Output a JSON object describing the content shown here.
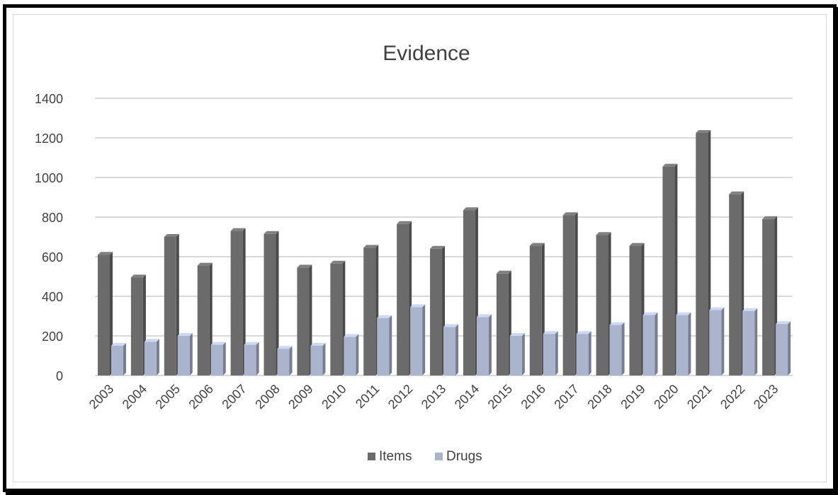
{
  "chart_data": {
    "type": "bar",
    "title": "Evidence",
    "categories": [
      "2003",
      "2004",
      "2005",
      "2006",
      "2007",
      "2008",
      "2009",
      "2010",
      "2011",
      "2012",
      "2013",
      "2014",
      "2015",
      "2016",
      "2017",
      "2018",
      "2019",
      "2020",
      "2021",
      "2022",
      "2023"
    ],
    "series": [
      {
        "name": "Items",
        "color": "#6b6b6b",
        "values": [
          610,
          495,
          700,
          555,
          730,
          715,
          545,
          565,
          645,
          765,
          640,
          835,
          515,
          655,
          810,
          710,
          655,
          1055,
          1225,
          915,
          790
        ]
      },
      {
        "name": "Drugs",
        "color": "#aab4cc",
        "values": [
          150,
          170,
          200,
          155,
          155,
          135,
          150,
          195,
          290,
          345,
          245,
          295,
          200,
          210,
          210,
          255,
          305,
          305,
          330,
          325,
          260
        ]
      }
    ],
    "ylim": [
      0,
      1400
    ],
    "yticks": [
      0,
      200,
      400,
      600,
      800,
      1000,
      1200,
      1400
    ],
    "xlabel": "",
    "ylabel": "",
    "grid": true,
    "legend": "bottom"
  }
}
